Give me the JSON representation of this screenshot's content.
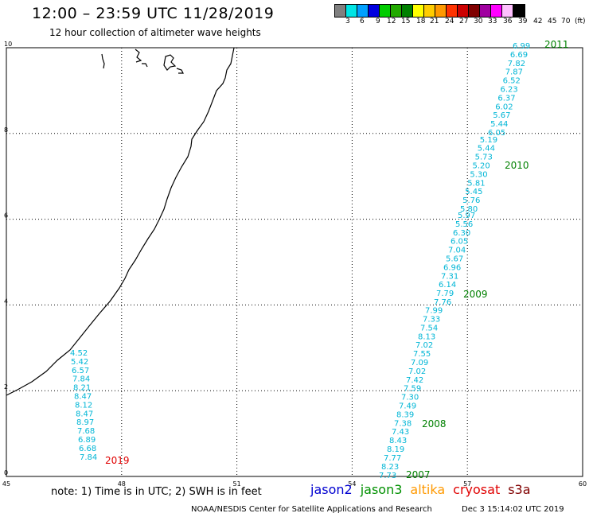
{
  "title": "12:00 – 23:59 UTC 11/28/2019",
  "subtitle": "12 hour collection of altimeter wave heights",
  "legend": {
    "colors": [
      "#808080",
      "#00e5e5",
      "#00a0ff",
      "#0000e0",
      "#00cc00",
      "#22aa00",
      "#008000",
      "#ffff00",
      "#ffcc00",
      "#ff9900",
      "#ff3300",
      "#cc0000",
      "#800000",
      "#a000a0",
      "#ff00ff",
      "#ffc0ff",
      "#000000"
    ],
    "labels": [
      "3",
      "6",
      "9",
      "12",
      "15",
      "18",
      "21",
      "24",
      "27",
      "30",
      "33",
      "36",
      "39",
      "42",
      "45",
      "70",
      "(ft)"
    ]
  },
  "axes": {
    "x_ticks": [
      "45",
      "48",
      "51",
      "54",
      "57",
      "60"
    ],
    "y_ticks": [
      "0",
      "2",
      "4",
      "6",
      "8",
      "10"
    ]
  },
  "swh_colors": {
    "swh": "#00b6d6"
  },
  "tracks": [
    {
      "year_label": "2019",
      "year_color": "#e00000",
      "values": [
        "4.52",
        "5.42",
        "6.57",
        "7.84",
        "8.21",
        "8.47",
        "8.12",
        "8.47",
        "8.97",
        "7.68",
        "6.89",
        "6.68",
        "7.84"
      ]
    },
    {
      "year_label": "2007",
      "year_color": "#008000",
      "values": [
        "7.73",
        "8.23",
        "7.77"
      ]
    },
    {
      "year_label": "2008",
      "year_color": "#008000",
      "values": [
        "8.19",
        "8.43",
        "7.43",
        "7.38",
        "8.39",
        "7.49",
        "7.30",
        "7.59",
        "7.42",
        "7.02",
        "7.09",
        "7.55",
        "7.02",
        "8.13",
        "7.54",
        "7.33",
        "7.99"
      ]
    },
    {
      "year_label": "2009",
      "year_color": "#008000",
      "values": [
        "7.76",
        "7.79",
        "6.14",
        "7.31",
        "6.96",
        "5.67",
        "7.04",
        "6.05",
        "6.30",
        "5.56",
        "5.97"
      ]
    },
    {
      "year_label": "2010",
      "year_color": "#008000",
      "values": [
        "5.80",
        "5.76",
        "5.45",
        "5.81",
        "5.30",
        "5.20",
        "5.73",
        "5.44",
        "5.19"
      ]
    },
    {
      "year_label": "2011",
      "year_color": "#008000",
      "values": [
        "6.05",
        "5.44",
        "5.67",
        "6.02",
        "6.37",
        "6.23",
        "6.52",
        "7.87",
        "7.82",
        "6.69",
        "6.99"
      ]
    }
  ],
  "note": "note:  1) Time is in UTC;  2) SWH is in feet",
  "satellites": [
    {
      "name": "jason2",
      "color": "#0000d0"
    },
    {
      "name": "jason3",
      "color": "#009000"
    },
    {
      "name": "altika",
      "color": "#ff9900"
    },
    {
      "name": "cryosat",
      "color": "#e00000"
    },
    {
      "name": "s3a",
      "color": "#800000"
    }
  ],
  "footer_left": "NOAA/NESDIS Center for Satellite Applications and Research",
  "footer_right": "Dec  3 15:14:02 UTC 2019"
}
